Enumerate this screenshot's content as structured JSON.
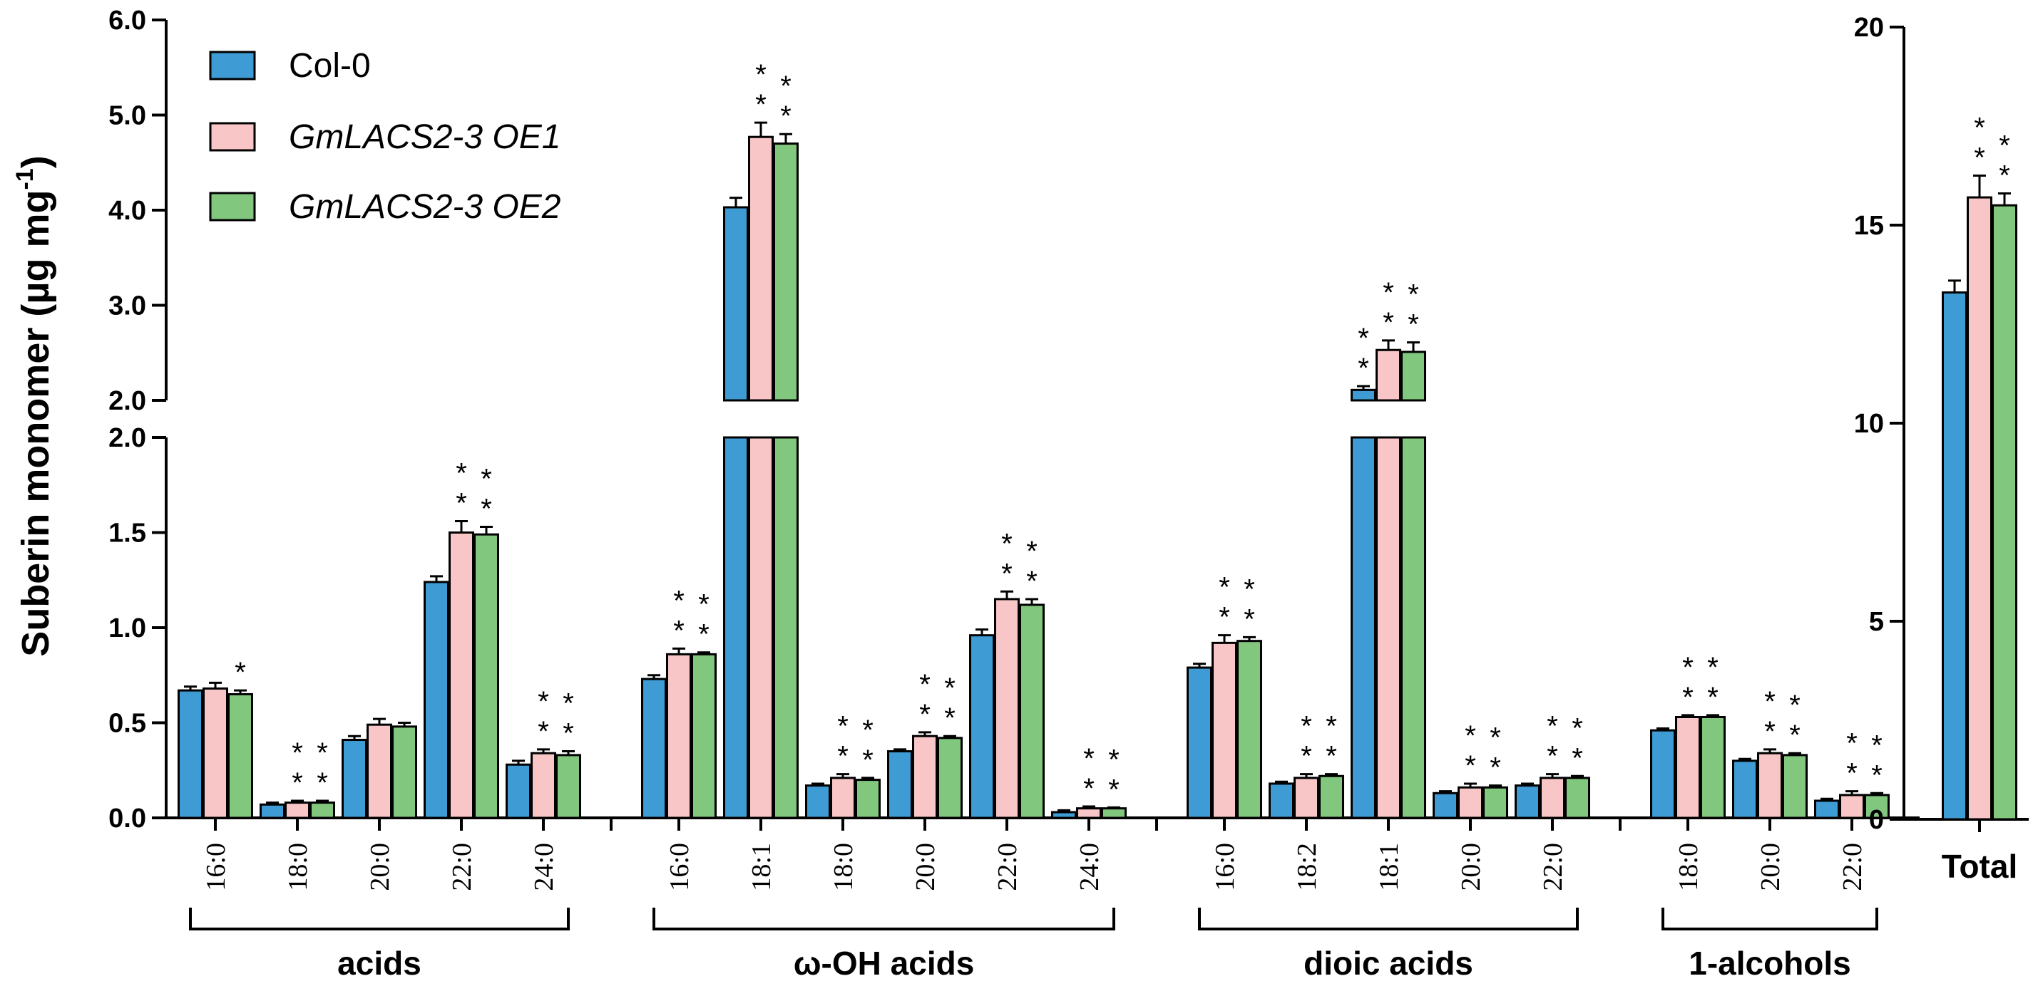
{
  "chart_data": {
    "type": "bar",
    "ylabel_main": "Suberin monomer (µg mg",
    "ylabel_sup": "-1",
    "ylabel_close": ")",
    "series": [
      {
        "name": "Col-0",
        "italic": false,
        "color": "#3f9bd4"
      },
      {
        "name": "GmLACS2-3 OE1",
        "italic": true,
        "color": "#f8c6c6"
      },
      {
        "name": "GmLACS2-3 OE2",
        "italic": true,
        "color": "#82c77e"
      }
    ],
    "y_axis": {
      "lower_range": [
        0,
        2.0
      ],
      "upper_range": [
        2.0,
        6.0
      ],
      "lower_ticks": [
        "0.0",
        "0.5",
        "1.0",
        "1.5",
        "2.0"
      ],
      "upper_ticks": [
        "2.0",
        "3.0",
        "4.0",
        "5.0",
        "6.0"
      ]
    },
    "groups": [
      {
        "label": "acids",
        "categories": [
          {
            "label": "16:0",
            "values": [
              0.67,
              0.68,
              0.65
            ],
            "errors": [
              0.02,
              0.03,
              0.02
            ],
            "stars": [
              "",
              "",
              "*"
            ]
          },
          {
            "label": "18:0",
            "values": [
              0.07,
              0.08,
              0.08
            ],
            "errors": [
              0.01,
              0.01,
              0.01
            ],
            "stars": [
              "",
              "**",
              "**"
            ]
          },
          {
            "label": "20:0",
            "values": [
              0.41,
              0.49,
              0.48
            ],
            "errors": [
              0.02,
              0.03,
              0.02
            ],
            "stars": [
              "",
              "",
              ""
            ]
          },
          {
            "label": "22:0",
            "values": [
              1.24,
              1.5,
              1.49
            ],
            "errors": [
              0.03,
              0.06,
              0.04
            ],
            "stars": [
              "",
              "**",
              "**"
            ]
          },
          {
            "label": "24:0",
            "values": [
              0.28,
              0.34,
              0.33
            ],
            "errors": [
              0.02,
              0.02,
              0.02
            ],
            "stars": [
              "",
              "**",
              "**"
            ]
          }
        ]
      },
      {
        "label": "ω-OH acids",
        "categories": [
          {
            "label": "16:0",
            "values": [
              0.73,
              0.86,
              0.86
            ],
            "errors": [
              0.02,
              0.03,
              0.01
            ],
            "stars": [
              "",
              "**",
              "**"
            ]
          },
          {
            "label": "18:1",
            "values": [
              4.03,
              4.77,
              4.7
            ],
            "errors": [
              0.1,
              0.15,
              0.1
            ],
            "stars": [
              "",
              "**",
              "**"
            ]
          },
          {
            "label": "18:0",
            "values": [
              0.17,
              0.21,
              0.2
            ],
            "errors": [
              0.01,
              0.02,
              0.01
            ],
            "stars": [
              "",
              "**",
              "**"
            ]
          },
          {
            "label": "20:0",
            "values": [
              0.35,
              0.43,
              0.42
            ],
            "errors": [
              0.01,
              0.02,
              0.01
            ],
            "stars": [
              "",
              "**",
              "**"
            ]
          },
          {
            "label": "22:0",
            "values": [
              0.96,
              1.15,
              1.12
            ],
            "errors": [
              0.03,
              0.04,
              0.03
            ],
            "stars": [
              "",
              "**",
              "**"
            ]
          },
          {
            "label": "24:0",
            "values": [
              0.03,
              0.05,
              0.05
            ],
            "errors": [
              0.01,
              0.01,
              0.005
            ],
            "stars": [
              "",
              "**",
              "**"
            ]
          }
        ]
      },
      {
        "label": "dioic acids",
        "categories": [
          {
            "label": "16:0",
            "values": [
              0.79,
              0.92,
              0.93
            ],
            "errors": [
              0.02,
              0.04,
              0.02
            ],
            "stars": [
              "",
              "**",
              "**"
            ]
          },
          {
            "label": "18:2",
            "values": [
              0.18,
              0.21,
              0.22
            ],
            "errors": [
              0.01,
              0.02,
              0.01
            ],
            "stars": [
              "",
              "**",
              "**"
            ]
          },
          {
            "label": "18:1",
            "values": [
              2.11,
              2.53,
              2.51
            ],
            "errors": [
              0.04,
              0.1,
              0.1
            ],
            "stars": [
              "**",
              "**",
              "**"
            ]
          },
          {
            "label": "20:0",
            "values": [
              0.13,
              0.16,
              0.16
            ],
            "errors": [
              0.01,
              0.02,
              0.01
            ],
            "stars": [
              "",
              "**",
              "**"
            ]
          },
          {
            "label": "22:0",
            "values": [
              0.17,
              0.21,
              0.21
            ],
            "errors": [
              0.01,
              0.02,
              0.01
            ],
            "stars": [
              "",
              "**",
              "**"
            ]
          }
        ]
      },
      {
        "label": "1-alcohols",
        "categories": [
          {
            "label": "18:0",
            "values": [
              0.46,
              0.53,
              0.53
            ],
            "errors": [
              0.01,
              0.01,
              0.01
            ],
            "stars": [
              "",
              "**",
              "**"
            ]
          },
          {
            "label": "20:0",
            "values": [
              0.3,
              0.34,
              0.33
            ],
            "errors": [
              0.01,
              0.02,
              0.01
            ],
            "stars": [
              "",
              "**",
              "**"
            ]
          },
          {
            "label": "22:0",
            "values": [
              0.09,
              0.12,
              0.12
            ],
            "errors": [
              0.01,
              0.02,
              0.01
            ],
            "stars": [
              "",
              "**",
              "**"
            ]
          }
        ]
      }
    ],
    "total_panel": {
      "category": "Total",
      "ylim": [
        0,
        20
      ],
      "ticks": [
        "0",
        "5",
        "10",
        "15",
        "20"
      ],
      "values": [
        13.3,
        15.7,
        15.5
      ],
      "errors": [
        0.3,
        0.55,
        0.3
      ],
      "stars": [
        "",
        "**",
        "**"
      ]
    }
  }
}
